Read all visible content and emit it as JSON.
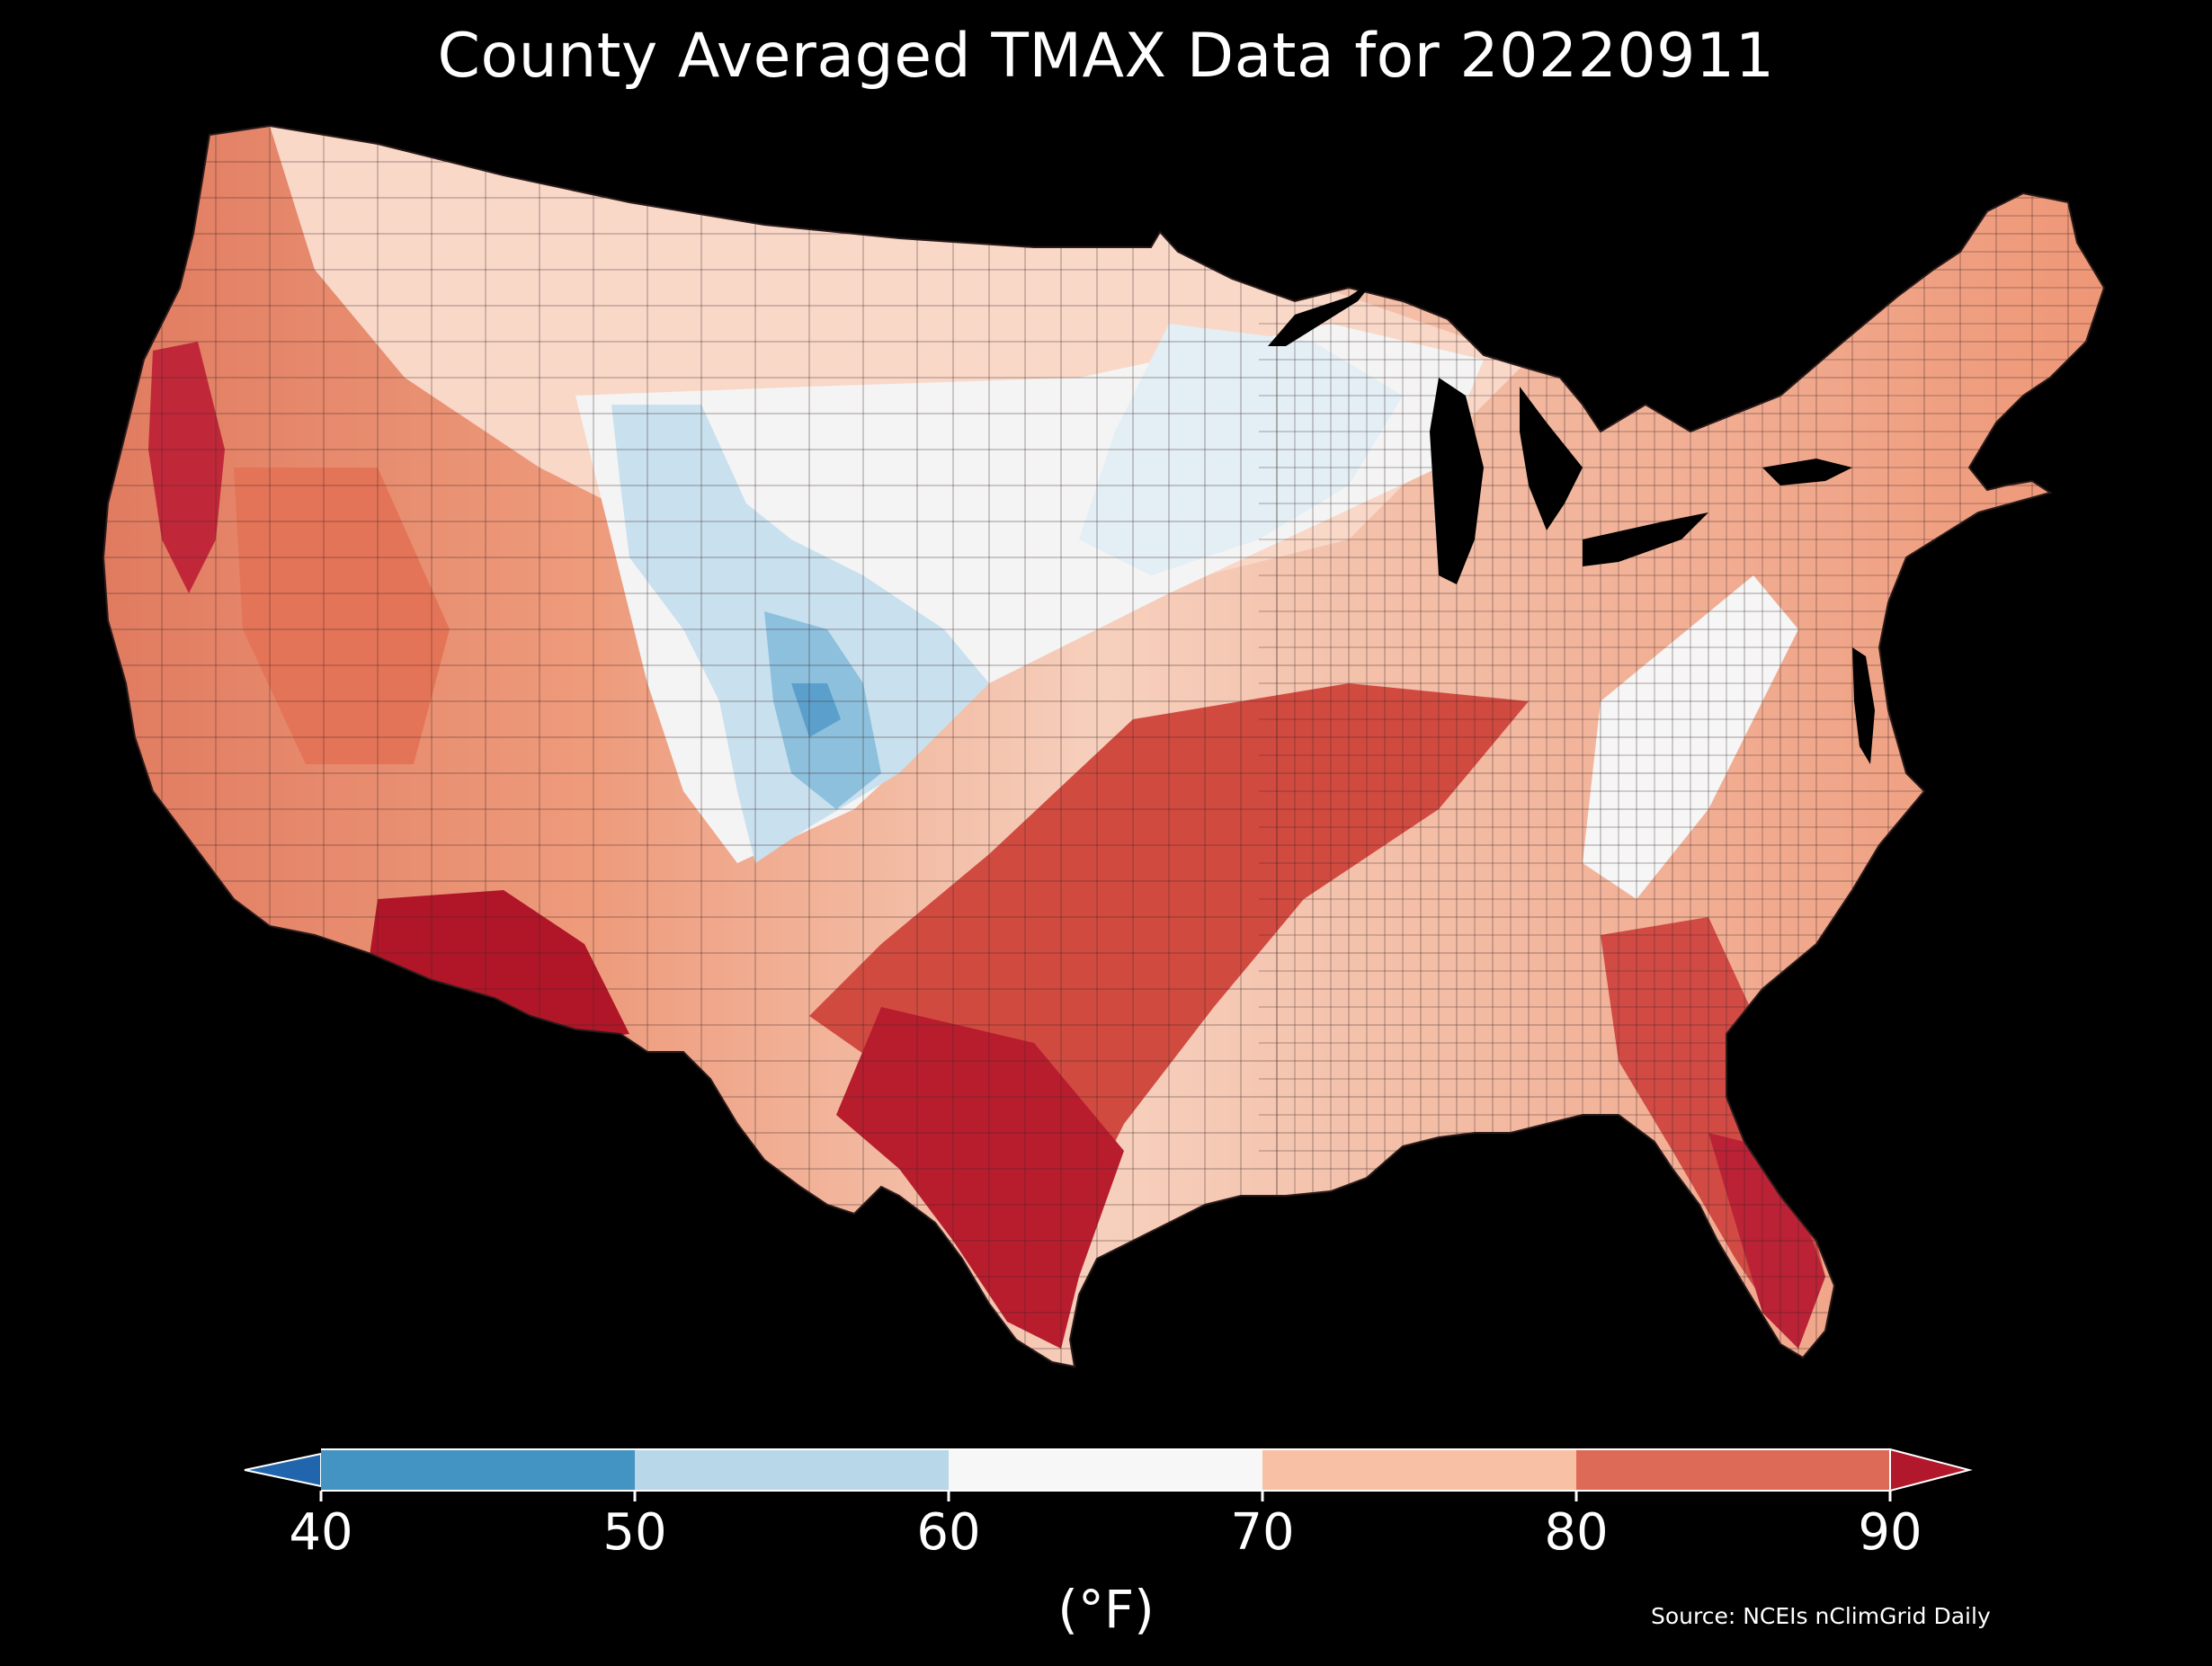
{
  "title": "County Averaged TMAX Data for 20220911",
  "colorbar": {
    "unit_label": "(°F)",
    "ticks": [
      "40",
      "50",
      "60",
      "70",
      "80",
      "90"
    ],
    "bins": [
      {
        "from": 40,
        "to": 50,
        "color": "#4393c3"
      },
      {
        "from": 50,
        "to": 60,
        "color": "#b8d8ea"
      },
      {
        "from": 60,
        "to": 70,
        "color": "#f7f7f7"
      },
      {
        "from": 70,
        "to": 80,
        "color": "#f8c1a5"
      },
      {
        "from": 80,
        "to": 90,
        "color": "#dc6a56"
      }
    ],
    "under_color": "#2166ac",
    "over_color": "#b2182b"
  },
  "source": "Source: NCEIs nClimGrid Daily",
  "map": {
    "region": "Contiguous United States counties",
    "background": "#000000",
    "border_color": "#1a1a1a",
    "water_color": "#000000"
  }
}
